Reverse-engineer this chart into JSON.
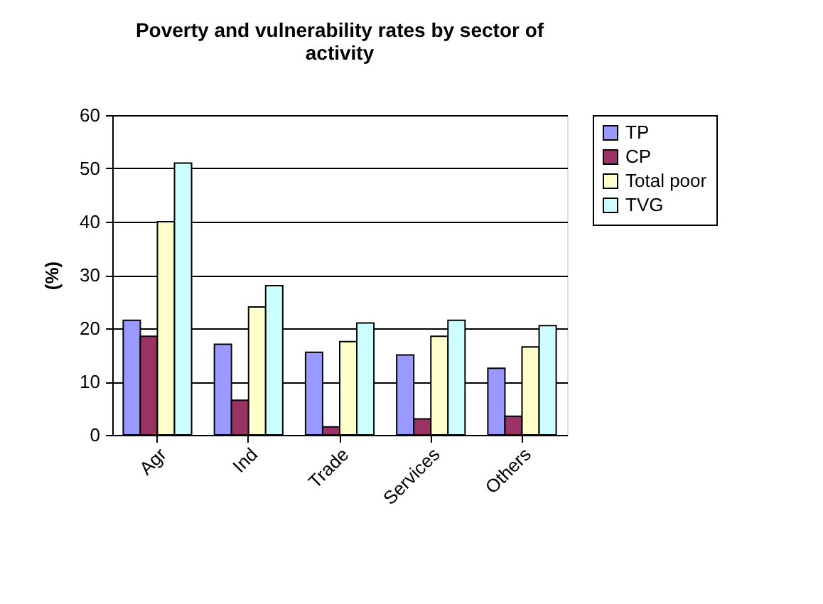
{
  "chart_data": {
    "type": "bar",
    "title": "Poverty and vulnerability rates by sector of activity",
    "ylabel": "(%)",
    "categories": [
      "Agr",
      "Ind",
      "Trade",
      "Services",
      "Others"
    ],
    "series": [
      {
        "name": "TP",
        "color": "#9999ff",
        "values": [
          21.5,
          17,
          15.5,
          15,
          12.5
        ]
      },
      {
        "name": "CP",
        "color": "#993366",
        "values": [
          18.5,
          6.5,
          1.5,
          3,
          3.5
        ]
      },
      {
        "name": "Total poor",
        "color": "#ffffcc",
        "values": [
          40,
          24,
          17.5,
          18.5,
          16.5
        ]
      },
      {
        "name": "TVG",
        "color": "#ccffff",
        "values": [
          51,
          28,
          21,
          21.5,
          20.5
        ]
      }
    ],
    "ylim": [
      0,
      60
    ],
    "yticks": [
      0,
      10,
      20,
      30,
      40,
      50,
      60
    ],
    "grid": "y",
    "legend": "right"
  }
}
